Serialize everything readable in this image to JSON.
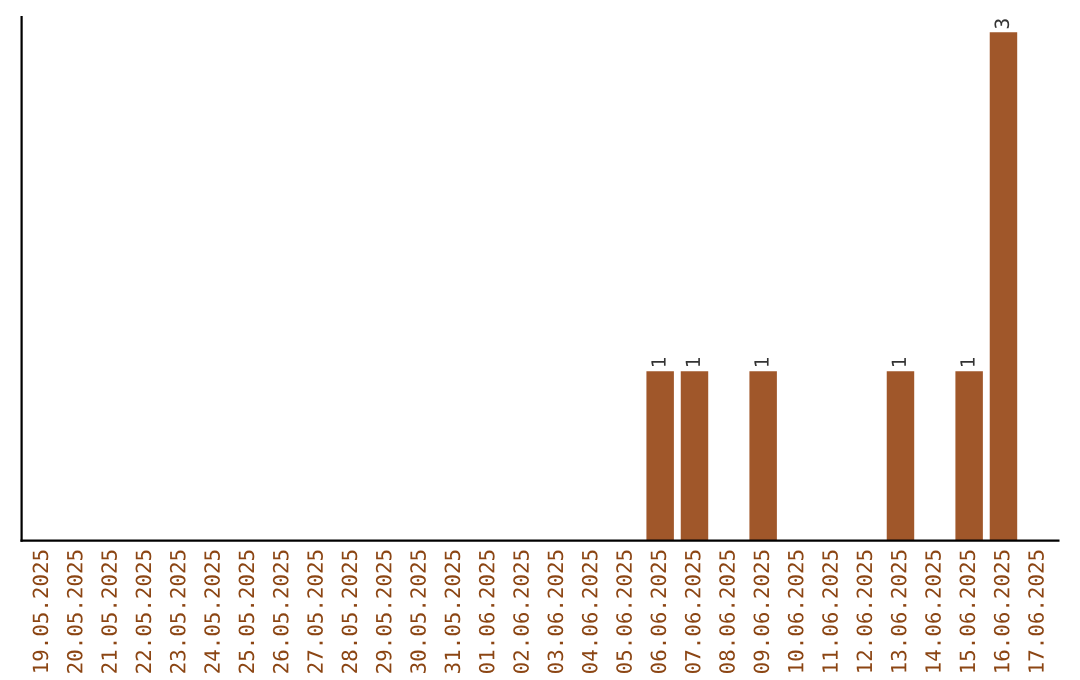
{
  "chart_data": {
    "type": "bar",
    "categories": [
      "19.05.2025",
      "20.05.2025",
      "21.05.2025",
      "22.05.2025",
      "23.05.2025",
      "24.05.2025",
      "25.05.2025",
      "26.05.2025",
      "27.05.2025",
      "28.05.2025",
      "29.05.2025",
      "30.05.2025",
      "31.05.2025",
      "01.06.2025",
      "02.06.2025",
      "03.06.2025",
      "04.06.2025",
      "05.06.2025",
      "06.06.2025",
      "07.06.2025",
      "08.06.2025",
      "09.06.2025",
      "10.06.2025",
      "11.06.2025",
      "12.06.2025",
      "13.06.2025",
      "14.06.2025",
      "15.06.2025",
      "16.06.2025",
      "17.06.2025"
    ],
    "values": [
      null,
      null,
      null,
      null,
      null,
      null,
      null,
      null,
      null,
      null,
      null,
      null,
      null,
      null,
      null,
      null,
      null,
      null,
      1,
      1,
      null,
      1,
      null,
      null,
      null,
      1,
      null,
      1,
      3,
      null
    ],
    "data_labels": true,
    "color": "#a0572a",
    "tick_labels": "x",
    "grid": false,
    "legend": false
  }
}
